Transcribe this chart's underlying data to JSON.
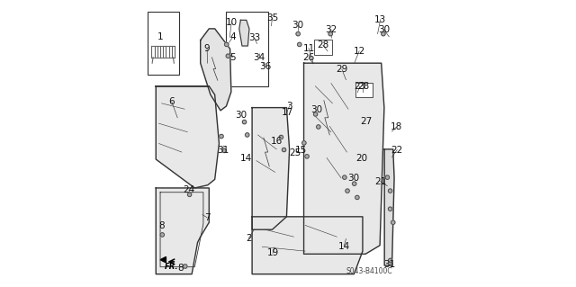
{
  "bg_color": "#ffffff",
  "line_color": "#333333",
  "label_color": "#111111",
  "watermark": "S043-B4100C",
  "font_size": 7.5
}
